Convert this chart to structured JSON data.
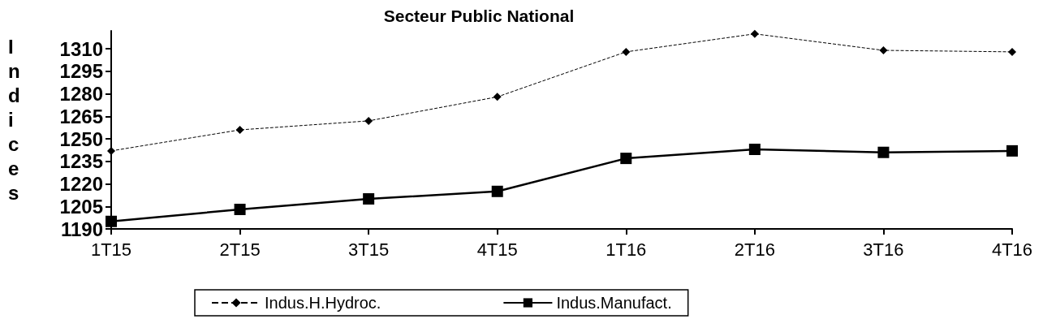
{
  "chart_data": {
    "type": "line",
    "title": "Secteur Public National",
    "ylabel": "Indices",
    "categories": [
      "1T15",
      "2T15",
      "3T15",
      "4T15",
      "1T16",
      "2T16",
      "3T16",
      "4T16"
    ],
    "series": [
      {
        "name": "Indus.H.Hydroc.",
        "color": "#000000",
        "marker": "diamond",
        "line_style": "dashed",
        "values": [
          1242,
          1256,
          1262,
          1278,
          1308,
          1320,
          1309,
          1308
        ]
      },
      {
        "name": "Indus.Manufact.",
        "color": "#000000",
        "marker": "square",
        "line_style": "solid",
        "values": [
          1195,
          1203,
          1210,
          1215,
          1237,
          1243,
          1241,
          1242
        ]
      }
    ],
    "ylim": [
      1190,
      1322
    ],
    "yticks": [
      1190,
      1205,
      1220,
      1235,
      1250,
      1265,
      1280,
      1295,
      1310
    ],
    "grid": false,
    "legend": "bottom"
  }
}
